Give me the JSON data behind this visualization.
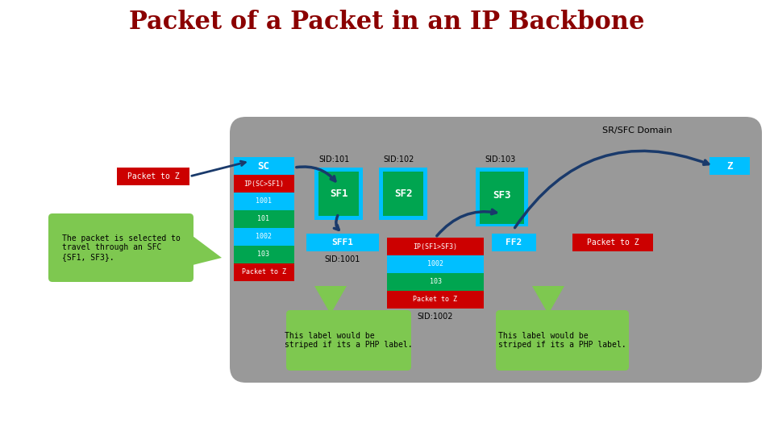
{
  "title": "Packet of a Packet in an IP Backbone",
  "title_color": "#8B0000",
  "title_fontsize": 22,
  "bg_color": "#ffffff",
  "domain_color": "#999999",
  "domain_label": "SR/SFC Domain",
  "cyan_color": "#00BFFF",
  "green_color": "#00A550",
  "red_color": "#CC0000",
  "lime_color": "#7EC850",
  "dark_navy": "#1C3A6B",
  "sc_label": "SC",
  "z_label": "Z",
  "packet_to_z": "Packet to Z",
  "sfc_note": "The packet is selected to\ntravel through an SFC\n{SF1, SF3}.",
  "php_note1": "This label would be\nstriped if its a PHP label.",
  "php_note2": "This label would be\nstriped if its a PHP label.",
  "sc_stack": [
    "IP(SC>SF1)",
    "1001",
    "101",
    "1002",
    "103",
    "Packet to Z"
  ],
  "sc_stack_colors": [
    "#CC0000",
    "#00BFFF",
    "#00A550",
    "#00BFFF",
    "#00A550",
    "#CC0000"
  ],
  "sff1_stack": [
    "SFF1",
    "SID:1001"
  ],
  "sff1_inner_stack": [
    "IP(SF1>SF3)",
    "1002",
    "103",
    "Packet to Z"
  ],
  "sff1_inner_colors": [
    "#CC0000",
    "#00BFFF",
    "#00A550",
    "#CC0000"
  ],
  "sff2_stack_label": "SID:1002",
  "sid_labels": [
    "SID:101",
    "SID:102",
    "SID:103"
  ],
  "sf_labels": [
    "SF1",
    "SF2",
    "SF3"
  ],
  "ff2_label": "FF2"
}
